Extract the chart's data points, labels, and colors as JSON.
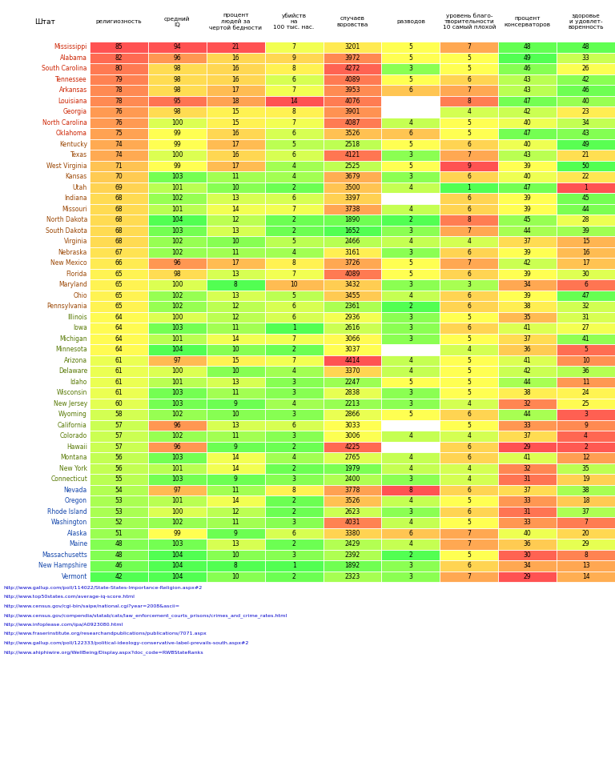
{
  "col_header": "Штат",
  "headers": [
    "религиозность",
    "средний\nIQ",
    "процент\nлюдей за\nчертой бедности",
    "убийств\nна\n100 тыс. нас.",
    "случаев\nворовства",
    "разводов",
    "уровень благо-\nтворительности\n10 самый плохой",
    "процент\nконсерваторов",
    "здоровье\nи удовлет-\nворенность"
  ],
  "states": [
    "Mississippi",
    "Alabama",
    "South Carolina",
    "Tennessee",
    "Arkansas",
    "Louisiana",
    "Georgia",
    "North Carolina",
    "Oklahoma",
    "Kentucky",
    "Texas",
    "West Virginia",
    "Kansas",
    "Utah",
    "Indiana",
    "Missouri",
    "North Dakota",
    "South Dakota",
    "Virginia",
    "Nebraska",
    "New Mexico",
    "Florida",
    "Maryland",
    "Ohio",
    "Pennsylvania",
    "Illinois",
    "Iowa",
    "Michigan",
    "Minnesota",
    "Arizona",
    "Delaware",
    "Idaho",
    "Wisconsin",
    "New Jersey",
    "Wyoming",
    "California",
    "Colorado",
    "Hawaii",
    "Montana",
    "New York",
    "Connecticut",
    "Nevada",
    "Oregon",
    "Rhode Island",
    "Washington",
    "Alaska",
    "Maine",
    "Massachusetts",
    "New Hampshire",
    "Vermont"
  ],
  "data": [
    [
      85,
      94,
      21,
      7,
      3201,
      5,
      7,
      48,
      48
    ],
    [
      82,
      96,
      16,
      9,
      3972,
      5,
      5,
      49,
      33
    ],
    [
      80,
      98,
      16,
      8,
      4272,
      3,
      5,
      46,
      26
    ],
    [
      79,
      98,
      16,
      6,
      4089,
      5,
      6,
      43,
      42
    ],
    [
      78,
      98,
      17,
      7,
      3953,
      6,
      7,
      43,
      46
    ],
    [
      78,
      95,
      18,
      14,
      4076,
      null,
      8,
      47,
      40
    ],
    [
      76,
      98,
      15,
      8,
      3901,
      null,
      4,
      42,
      23
    ],
    [
      76,
      100,
      15,
      7,
      4087,
      4,
      5,
      40,
      34
    ],
    [
      75,
      99,
      16,
      6,
      3526,
      6,
      5,
      47,
      43
    ],
    [
      74,
      99,
      17,
      5,
      2518,
      5,
      6,
      40,
      49
    ],
    [
      74,
      100,
      16,
      6,
      4121,
      3,
      7,
      43,
      21
    ],
    [
      71,
      99,
      17,
      4,
      2525,
      5,
      9,
      39,
      50
    ],
    [
      70,
      103,
      11,
      4,
      3679,
      3,
      6,
      40,
      22
    ],
    [
      69,
      101,
      10,
      2,
      3500,
      4,
      1,
      47,
      1
    ],
    [
      68,
      102,
      13,
      6,
      3397,
      null,
      6,
      39,
      45
    ],
    [
      68,
      101,
      14,
      7,
      3738,
      4,
      6,
      39,
      44
    ],
    [
      68,
      104,
      12,
      2,
      1890,
      2,
      8,
      45,
      28
    ],
    [
      68,
      103,
      13,
      2,
      1652,
      3,
      7,
      44,
      39
    ],
    [
      68,
      102,
      10,
      5,
      2466,
      4,
      4,
      37,
      15
    ],
    [
      67,
      102,
      11,
      4,
      3161,
      3,
      6,
      39,
      16
    ],
    [
      66,
      96,
      17,
      8,
      3726,
      5,
      7,
      42,
      17
    ],
    [
      65,
      98,
      13,
      7,
      4089,
      5,
      6,
      39,
      30
    ],
    [
      65,
      100,
      8,
      10,
      3432,
      3,
      3,
      34,
      6
    ],
    [
      65,
      102,
      13,
      5,
      3455,
      4,
      6,
      39,
      47
    ],
    [
      65,
      102,
      12,
      6,
      2361,
      2,
      6,
      38,
      32
    ],
    [
      64,
      100,
      12,
      6,
      2936,
      3,
      5,
      35,
      31
    ],
    [
      64,
      103,
      11,
      1,
      2616,
      3,
      6,
      41,
      27
    ],
    [
      64,
      101,
      14,
      7,
      3066,
      3,
      5,
      37,
      41
    ],
    [
      64,
      104,
      10,
      2,
      3037,
      null,
      4,
      36,
      5
    ],
    [
      61,
      97,
      15,
      7,
      4414,
      4,
      5,
      41,
      10
    ],
    [
      61,
      100,
      10,
      4,
      3370,
      4,
      5,
      42,
      36
    ],
    [
      61,
      101,
      13,
      3,
      2247,
      5,
      5,
      44,
      11
    ],
    [
      61,
      103,
      11,
      3,
      2838,
      3,
      5,
      38,
      24
    ],
    [
      60,
      103,
      9,
      4,
      2213,
      3,
      4,
      32,
      25
    ],
    [
      58,
      102,
      10,
      3,
      2866,
      5,
      6,
      44,
      3
    ],
    [
      57,
      96,
      13,
      6,
      3033,
      null,
      5,
      33,
      9
    ],
    [
      57,
      102,
      11,
      3,
      3006,
      4,
      4,
      37,
      4
    ],
    [
      57,
      96,
      9,
      2,
      4225,
      null,
      6,
      29,
      2
    ],
    [
      56,
      103,
      14,
      4,
      2765,
      4,
      6,
      41,
      12
    ],
    [
      56,
      101,
      14,
      2,
      1979,
      4,
      4,
      32,
      35
    ],
    [
      55,
      103,
      9,
      3,
      2400,
      3,
      4,
      31,
      19
    ],
    [
      54,
      97,
      11,
      8,
      3778,
      8,
      6,
      37,
      38
    ],
    [
      53,
      101,
      14,
      2,
      3526,
      4,
      5,
      33,
      18
    ],
    [
      53,
      100,
      12,
      2,
      2623,
      3,
      6,
      31,
      37
    ],
    [
      52,
      102,
      11,
      3,
      4031,
      4,
      5,
      33,
      7
    ],
    [
      51,
      99,
      9,
      6,
      3380,
      6,
      7,
      40,
      20
    ],
    [
      48,
      103,
      13,
      2,
      2429,
      4,
      7,
      36,
      29
    ],
    [
      48,
      104,
      10,
      3,
      2392,
      2,
      5,
      30,
      8
    ],
    [
      46,
      104,
      8,
      1,
      1892,
      3,
      6,
      34,
      13
    ],
    [
      42,
      104,
      10,
      2,
      2323,
      3,
      7,
      29,
      14
    ]
  ],
  "col_mins": [
    42,
    94,
    8,
    1,
    1652,
    2,
    1,
    29,
    1
  ],
  "col_maxs": [
    85,
    104,
    21,
    14,
    4414,
    8,
    9,
    49,
    50
  ],
  "col_high_bad": [
    true,
    false,
    true,
    true,
    true,
    true,
    true,
    false,
    false
  ],
  "col_neutral": [
    false,
    false,
    false,
    false,
    false,
    false,
    false,
    false,
    false
  ],
  "urls": [
    "http://www.gallup.com/poll/114022/State-States-Importance-Religion.aspx#2",
    "http://www.top50states.com/average-iq-score.html",
    "http://www.census.gov/cgi-bin/saipe/national.cgi?year=2008&ascii=",
    "http://www.census.gov/compendia/statab/cats/law_enforcement_courts_prisons/crimes_and_crime_rates.html",
    "http://www.infoplease.com/ipa/A0923080.html",
    "http://www.fraserinstitute.org/researchandpublications/publications/7071.aspx",
    "http://www.gallup.com/poll/122333/political-ideology-conservative-label-prevails-south.aspx#2",
    "http://www.ahiphiwire.org/WellBeing/Display.aspx?doc_code=RWBStateRanks"
  ]
}
